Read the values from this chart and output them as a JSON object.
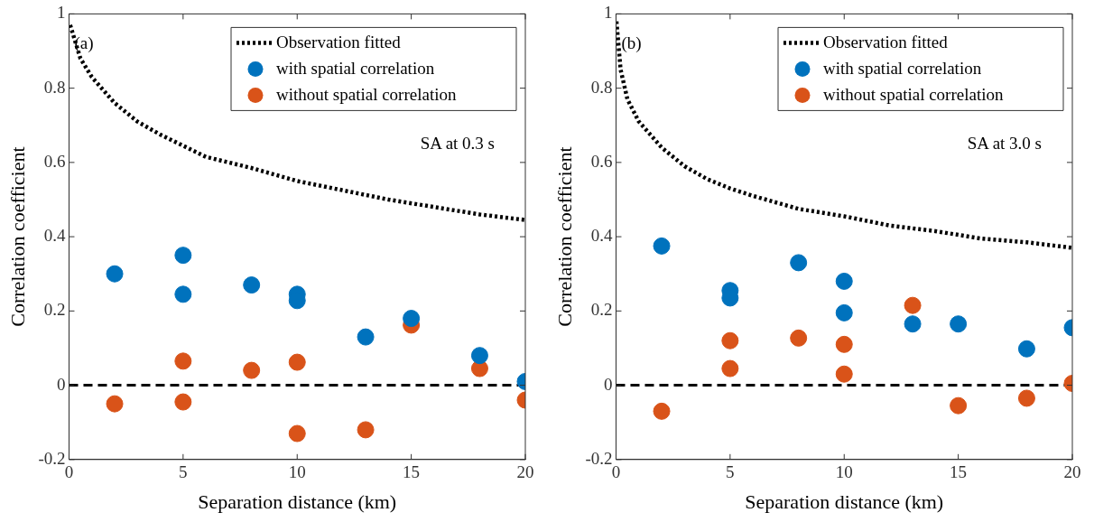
{
  "chart_data": [
    {
      "type": "scatter",
      "xlabel": "Separation distance (km)",
      "ylabel": "Correlation coefficient",
      "xlim": [
        0,
        20
      ],
      "xticks": [
        0,
        5,
        10,
        15,
        20
      ],
      "ylim": [
        -0.2,
        1
      ],
      "yticks": [
        -0.2,
        0,
        0.2,
        0.4,
        0.6,
        0.8,
        1
      ],
      "grid": false,
      "legend": "top right",
      "annotations": [
        "(a)",
        "SA at 0.3 s"
      ],
      "ref_lines": [
        {
          "axis": "y",
          "value": 0,
          "color": "#000000",
          "line_style": "dashed"
        }
      ],
      "series": [
        {
          "name": "Observation fitted",
          "type": "line",
          "color": "#000000",
          "line_style": "dotted",
          "marker": "none",
          "x": [
            0.05,
            0.5,
            1,
            2,
            3,
            4,
            5,
            6,
            8,
            10,
            12,
            14,
            16,
            18,
            20
          ],
          "values": [
            0.97,
            0.88,
            0.83,
            0.76,
            0.71,
            0.675,
            0.645,
            0.615,
            0.585,
            0.55,
            0.525,
            0.5,
            0.48,
            0.46,
            0.445
          ]
        },
        {
          "name": "with spatial correlation",
          "type": "scatter",
          "color": "#0072bd",
          "marker": "circle",
          "x": [
            2,
            5,
            5,
            8,
            10,
            10,
            13,
            15,
            18,
            20
          ],
          "values": [
            0.3,
            0.35,
            0.245,
            0.27,
            0.245,
            0.228,
            0.13,
            0.18,
            0.08,
            0.01
          ]
        },
        {
          "name": "without spatial correlation",
          "type": "scatter",
          "color": "#d95319",
          "marker": "circle",
          "x": [
            2,
            5,
            5,
            8,
            10,
            10,
            13,
            15,
            18,
            20
          ],
          "values": [
            -0.05,
            0.065,
            -0.045,
            0.04,
            0.062,
            -0.13,
            -0.12,
            0.162,
            0.045,
            -0.04
          ]
        }
      ]
    },
    {
      "type": "scatter",
      "xlabel": "Separation distance (km)",
      "ylabel": "Correlation coefficient",
      "xlim": [
        0,
        20
      ],
      "xticks": [
        0,
        5,
        10,
        15,
        20
      ],
      "ylim": [
        -0.2,
        1
      ],
      "yticks": [
        -0.2,
        0,
        0.2,
        0.4,
        0.6,
        0.8,
        1
      ],
      "grid": false,
      "legend": "top right",
      "annotations": [
        "(b)",
        "SA at 3.0 s"
      ],
      "ref_lines": [
        {
          "axis": "y",
          "value": 0,
          "color": "#000000",
          "line_style": "dashed"
        }
      ],
      "series": [
        {
          "name": "Observation fitted",
          "type": "line",
          "color": "#000000",
          "line_style": "dotted",
          "marker": "none",
          "x": [
            0.02,
            0.2,
            0.5,
            1,
            2,
            3,
            4,
            5,
            6,
            8,
            10,
            12,
            14,
            16,
            18,
            20
          ],
          "values": [
            0.98,
            0.85,
            0.77,
            0.71,
            0.64,
            0.59,
            0.555,
            0.53,
            0.51,
            0.475,
            0.455,
            0.43,
            0.415,
            0.395,
            0.385,
            0.37
          ]
        },
        {
          "name": "with spatial correlation",
          "type": "scatter",
          "color": "#0072bd",
          "marker": "circle",
          "x": [
            2,
            5,
            5,
            8,
            10,
            10,
            13,
            15,
            18,
            20
          ],
          "values": [
            0.375,
            0.255,
            0.235,
            0.33,
            0.28,
            0.195,
            0.165,
            0.165,
            0.098,
            0.155
          ]
        },
        {
          "name": "without spatial correlation",
          "type": "scatter",
          "color": "#d95319",
          "marker": "circle",
          "x": [
            2,
            5,
            5,
            8,
            10,
            10,
            13,
            15,
            18,
            20
          ],
          "values": [
            -0.07,
            0.12,
            0.045,
            0.127,
            0.11,
            0.03,
            0.215,
            -0.055,
            -0.035,
            0.005
          ]
        }
      ]
    }
  ]
}
